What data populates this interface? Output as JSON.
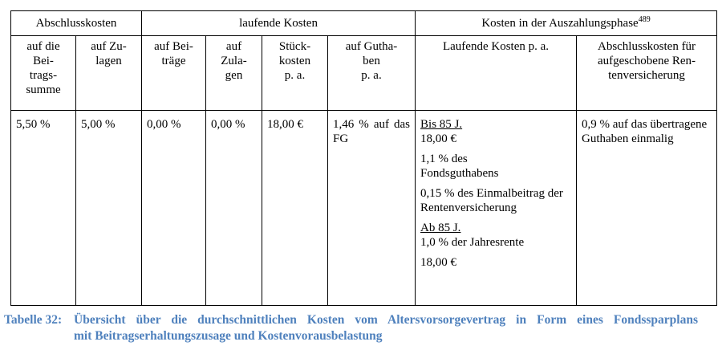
{
  "table": {
    "group_headers": [
      "Abschlusskosten",
      "laufende Kosten",
      "Kosten in der Auszahlungsphase"
    ],
    "group_header_footnote": "489",
    "sub_headers": [
      [
        "auf die",
        "Bei-",
        "trags-",
        "summe"
      ],
      [
        "auf Zu-",
        "lagen"
      ],
      [
        "auf Bei-",
        "träge"
      ],
      [
        "auf",
        "Zula-",
        "gen"
      ],
      [
        "Stück-",
        "kosten",
        "p. a."
      ],
      [
        "auf Gutha-",
        "ben",
        "p. a."
      ],
      [
        "Laufende Kosten p. a."
      ],
      [
        "Abschlusskosten für",
        "aufgeschobene Ren-",
        "tenversicherung"
      ]
    ],
    "row": {
      "c1": "5,50 %",
      "c2": "5,00 %",
      "c3": "0,00 %",
      "c4": "0,00 %",
      "c5": "18,00 €",
      "c6": "1,46 % auf das FG",
      "c7": {
        "bis_label": "Bis 85 J.",
        "bis_items": [
          "18,00 €",
          "1,1 % des Fondsguthabens",
          "0,15 % des Einmalbeitrag der Rentenversicherung"
        ],
        "ab_label": "Ab 85 J.",
        "ab_items": [
          "1,0 % der Jahresrente",
          "18,00 €"
        ]
      },
      "c8": "0,9 % auf das übertragene Guthaben einmalig"
    }
  },
  "caption": {
    "label": "Tabelle 32:",
    "line1": "Übersicht über die durchschnittlichen Kosten vom Altersvorsorgevertrag in Form eines Fondssparplans",
    "line2": "mit Beitragserhaltungszusage und Kostenvorausbelastung",
    "color": "#4f81bd"
  }
}
